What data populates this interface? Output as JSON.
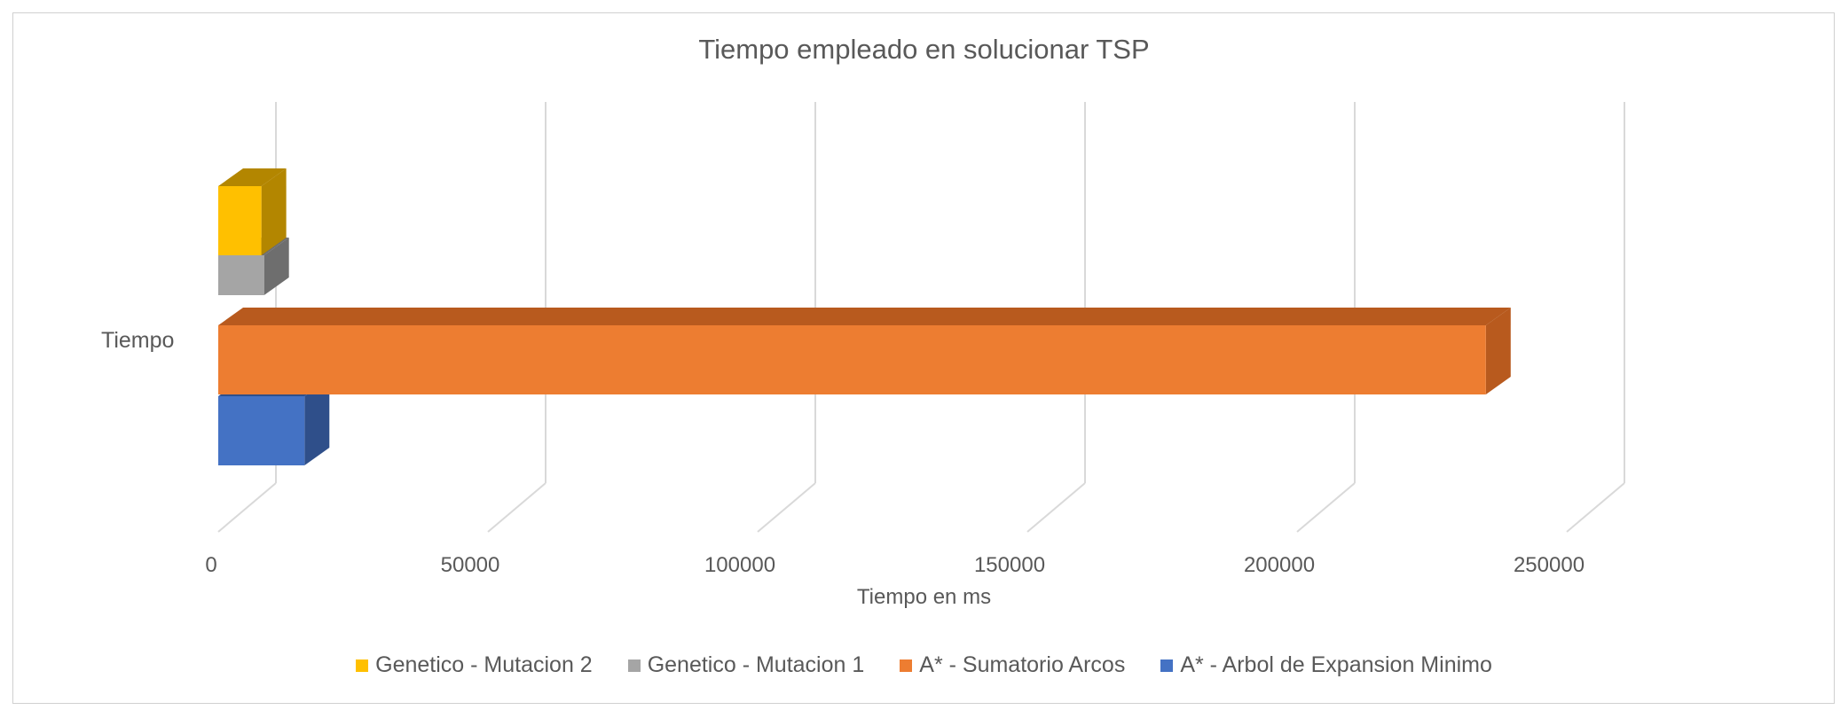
{
  "chart_data": {
    "type": "bar",
    "orientation": "horizontal",
    "three_d": true,
    "title": "Tiempo empleado en solucionar TSP",
    "xlabel": "Tiempo en ms",
    "ylabel": "",
    "categories": [
      "Tiempo"
    ],
    "xlim": [
      0,
      250000
    ],
    "xticks": [
      "0",
      "50000",
      "100000",
      "150000",
      "200000",
      "250000"
    ],
    "grid": true,
    "legend_position": "bottom",
    "series": [
      {
        "name": "A* - Arbol de Expansion Minimo",
        "values": [
          16000
        ],
        "color": "#4472C4",
        "side_color": "#2F4F8A"
      },
      {
        "name": "A* - Sumatorio Arcos",
        "values": [
          235000
        ],
        "color": "#ED7D31",
        "side_color": "#B85A1E"
      },
      {
        "name": "Genetico - Mutacion 1",
        "values": [
          8500
        ],
        "color": "#A5A5A5",
        "side_color": "#6E6E6E"
      },
      {
        "name": "Genetico - Mutacion 2",
        "values": [
          8000
        ],
        "color": "#FFC000",
        "side_color": "#B38600"
      }
    ],
    "legend_order": [
      3,
      2,
      1,
      0
    ]
  }
}
